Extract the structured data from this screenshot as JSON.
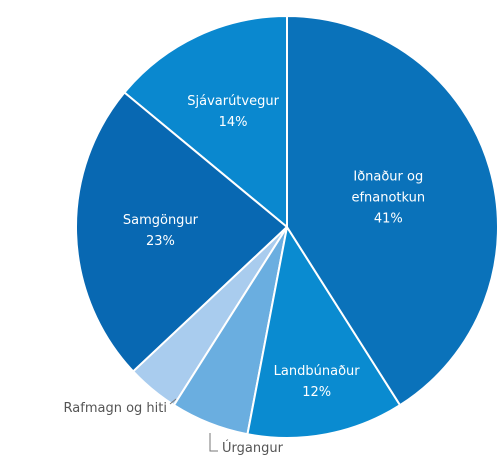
{
  "chart_data": {
    "type": "pie",
    "categories": [
      "Iðnaður og efnanotkun",
      "Landbúnaður",
      "Úrgangur",
      "Rafmagn og hiti",
      "Samgöngur",
      "Sjávarútvegur"
    ],
    "values": [
      41,
      12,
      6,
      4,
      23,
      14
    ],
    "value_labels": [
      "41%",
      "12%",
      null,
      null,
      "23%",
      "14%"
    ],
    "colors": [
      "#0a72ba",
      "#0a8bd0",
      "#6aaee0",
      "#a9ccee",
      "#0868b2",
      "#0a88cf"
    ]
  }
}
